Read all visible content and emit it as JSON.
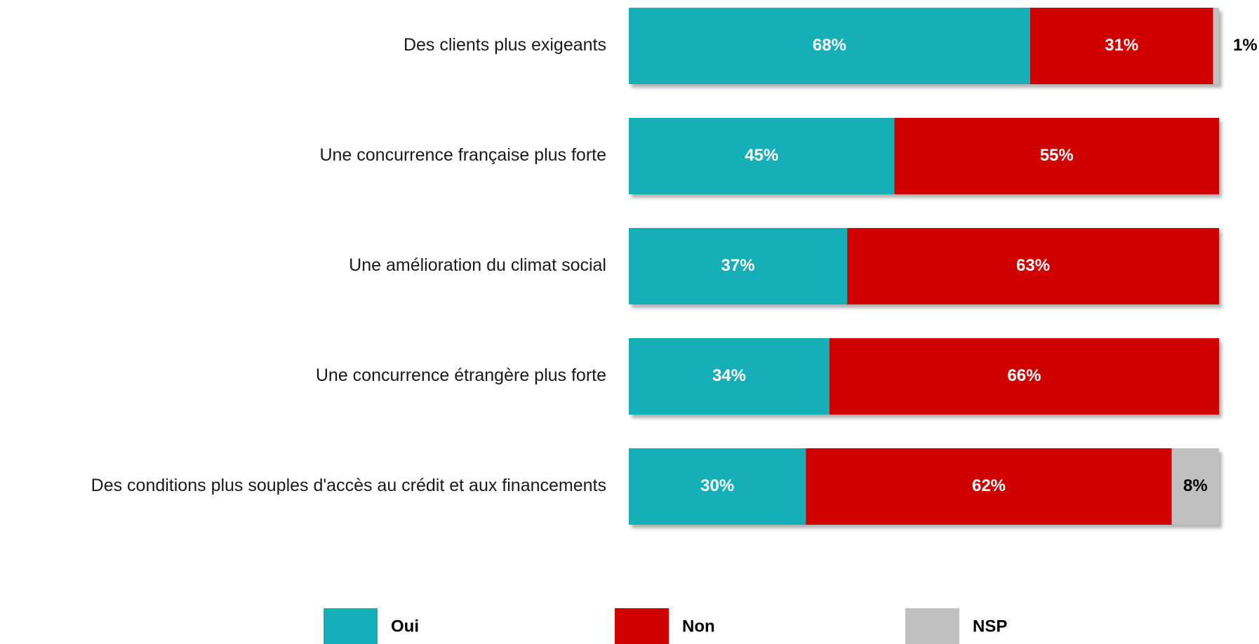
{
  "chart_data": {
    "type": "stacked_bar_horizontal",
    "categories": [
      "Des clients plus exigeants",
      "Une concurrence française plus forte",
      "Une amélioration du climat social",
      "Une concurrence étrangère plus forte",
      "Des conditions plus souples d'accès au crédit et aux financements"
    ],
    "xlim": [
      0,
      100
    ],
    "legend": "bottom",
    "series": [
      {
        "name": "Oui",
        "color": "#14afb8",
        "label_color": "#ffffff",
        "values": [
          68,
          45,
          37,
          34,
          30
        ],
        "value_labels": [
          "68%",
          "45%",
          "37%",
          "34%",
          "30%"
        ]
      },
      {
        "name": "Non",
        "color": "#d10000",
        "label_color": "#ffffff",
        "values": [
          31,
          55,
          63,
          66,
          62
        ],
        "value_labels": [
          "31%",
          "55%",
          "63%",
          "66%",
          "62%"
        ]
      },
      {
        "name": "NSP",
        "color": "#c0c0c0",
        "label_color": "#000000",
        "values": [
          1,
          null,
          null,
          null,
          8
        ],
        "value_labels": [
          "1%",
          null,
          null,
          null,
          "8%"
        ]
      }
    ]
  }
}
